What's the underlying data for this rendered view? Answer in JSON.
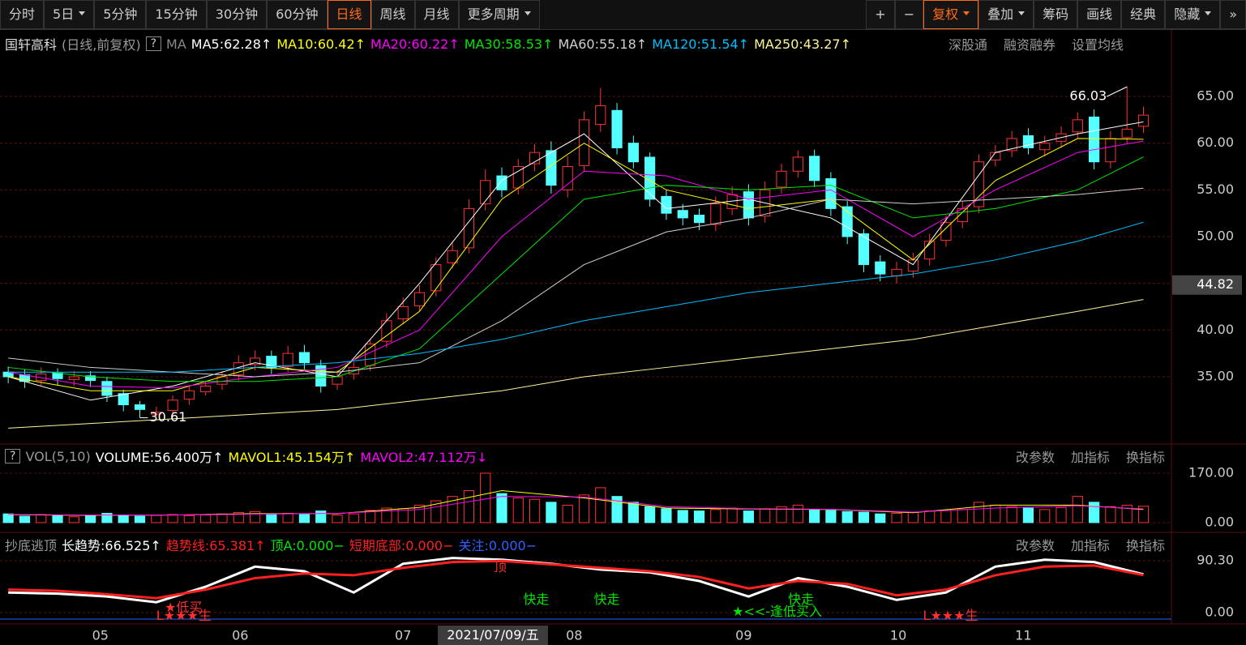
{
  "toolbar": {
    "left": [
      {
        "text": "分时"
      },
      {
        "text": "5日",
        "dropdown": true
      },
      {
        "text": "5分钟"
      },
      {
        "text": "15分钟"
      },
      {
        "text": "30分钟"
      },
      {
        "text": "60分钟"
      },
      {
        "text": "日线",
        "active": true
      },
      {
        "text": "周线"
      },
      {
        "text": "月线"
      },
      {
        "text": "更多周期",
        "dropdown": true
      }
    ],
    "right": [
      {
        "text": "+"
      },
      {
        "text": "−"
      },
      {
        "text": "复权",
        "dropdown": true,
        "active": true
      },
      {
        "text": "叠加",
        "dropdown": true
      },
      {
        "text": "筹码"
      },
      {
        "text": "画线"
      },
      {
        "text": "经典"
      },
      {
        "text": "隐藏",
        "dropdown": true
      },
      {
        "text": "»"
      }
    ]
  },
  "header": {
    "stock": "国轩高科",
    "mode": "(日线,前复权)",
    "help": "?",
    "ma_label": "MA",
    "links": [
      "深股通",
      "融资融券",
      "设置均线"
    ]
  },
  "panel_buttons": [
    "改参数",
    "加指标",
    "换指标"
  ],
  "crosshair_label": "2021/07/09/五",
  "chart_data": [
    {
      "type": "candlestick",
      "open": [
        35.5,
        35.2,
        34.6,
        35.4,
        34.7,
        35.1,
        34.5,
        33.2,
        32.0,
        31.0,
        31.4,
        32.6,
        33.4,
        34.2,
        35.2,
        36.3,
        37.2,
        36.1,
        37.6,
        36.2,
        34.2,
        35.3,
        36.2,
        38.8,
        41.2,
        42.6,
        44.2,
        47.2,
        48.8,
        53.5,
        56.5,
        55.2,
        57.8,
        59.2,
        55.0,
        57.6,
        62.0,
        63.5,
        60.0,
        58.5,
        54.3,
        52.8,
        52.3,
        51.3,
        53.0,
        54.8,
        52.2,
        55.3,
        57.0,
        58.6,
        56.2,
        53.2,
        50.3,
        47.3,
        45.8,
        46.3,
        47.6,
        49.6,
        51.6,
        53.2,
        58.2,
        59.2,
        60.8,
        59.3,
        60.2,
        61.2,
        62.8,
        58.0,
        60.6,
        61.8
      ],
      "high": [
        36.1,
        35.8,
        36.0,
        35.9,
        35.6,
        35.6,
        35.0,
        33.6,
        32.4,
        31.8,
        33.0,
        34.0,
        34.6,
        35.6,
        37.3,
        37.8,
        37.8,
        38.3,
        38.4,
        36.8,
        35.7,
        36.6,
        39.0,
        41.8,
        43.5,
        44.8,
        47.8,
        49.5,
        54.0,
        57.2,
        57.4,
        58.3,
        59.9,
        60.2,
        58.6,
        63.4,
        65.9,
        64.3,
        60.8,
        59.0,
        55.0,
        53.5,
        53.0,
        54.3,
        55.4,
        55.6,
        55.9,
        57.8,
        59.2,
        59.3,
        56.9,
        53.8,
        50.8,
        48.0,
        47.3,
        48.3,
        50.3,
        52.3,
        53.8,
        58.8,
        59.8,
        61.3,
        61.6,
        60.8,
        61.8,
        63.3,
        63.6,
        61.3,
        66.03,
        63.9
      ],
      "low": [
        34.3,
        33.8,
        34.0,
        34.1,
        34.0,
        33.9,
        32.3,
        31.3,
        30.61,
        30.7,
        30.8,
        32.0,
        33.0,
        33.6,
        34.6,
        35.7,
        35.3,
        35.5,
        35.8,
        33.3,
        33.6,
        34.7,
        35.6,
        38.1,
        40.6,
        42.0,
        43.6,
        46.6,
        48.2,
        52.8,
        54.2,
        54.5,
        57.0,
        54.6,
        54.2,
        56.9,
        61.2,
        58.8,
        57.3,
        53.2,
        51.8,
        51.2,
        50.7,
        50.6,
        52.3,
        51.2,
        51.5,
        54.6,
        56.3,
        55.3,
        52.2,
        49.2,
        46.2,
        45.2,
        45.0,
        45.6,
        46.9,
        48.9,
        50.9,
        52.5,
        57.5,
        58.5,
        58.8,
        58.6,
        59.5,
        60.5,
        57.2,
        57.3,
        59.9,
        61.1
      ],
      "close": [
        35.0,
        34.5,
        35.3,
        34.8,
        35.0,
        34.6,
        33.0,
        32.0,
        31.5,
        31.2,
        32.5,
        33.5,
        34.0,
        35.0,
        36.5,
        37.0,
        36.0,
        37.5,
        36.5,
        34.0,
        35.0,
        36.0,
        38.5,
        41.0,
        42.5,
        44.0,
        47.0,
        48.5,
        53.0,
        56.0,
        55.0,
        57.5,
        59.0,
        55.5,
        57.5,
        62.5,
        64.0,
        59.5,
        58.0,
        54.0,
        52.5,
        52.0,
        51.5,
        53.5,
        54.5,
        52.0,
        55.0,
        57.0,
        58.5,
        56.0,
        53.0,
        50.0,
        47.0,
        46.0,
        46.5,
        47.5,
        49.5,
        51.5,
        53.0,
        58.0,
        59.0,
        60.5,
        59.5,
        60.0,
        61.0,
        62.5,
        58.0,
        60.5,
        61.5,
        63.0
      ],
      "up_color": "#ff3232",
      "down_color": "#54ffff",
      "ma_x": [
        0,
        5,
        10,
        15,
        20,
        25,
        30,
        35,
        40,
        45,
        50,
        55,
        60,
        65,
        69
      ],
      "series": [
        {
          "name": "MA5:62.28↑",
          "color": "#ffffff",
          "values": [
            35,
            32.5,
            34,
            36.5,
            35,
            45,
            56,
            61,
            53,
            54,
            52,
            47,
            59,
            61,
            62.28
          ]
        },
        {
          "name": "MA10:60.42↑",
          "color": "#ffff00",
          "values": [
            35,
            33.5,
            33.5,
            36,
            35.5,
            42,
            54,
            60,
            55,
            53,
            54,
            47.5,
            56,
            60.5,
            60.42
          ]
        },
        {
          "name": "MA20:60.22↑",
          "color": "#ff00ff",
          "values": [
            35.5,
            34,
            33.8,
            35,
            36,
            40,
            50,
            57,
            56.5,
            54,
            55,
            50,
            55,
            59,
            60.22
          ]
        },
        {
          "name": "MA30:58.53↑",
          "color": "#00e600",
          "values": [
            36,
            35,
            34.5,
            34.5,
            35,
            38,
            46,
            54,
            55.5,
            55,
            55.5,
            52,
            53,
            55,
            58.53
          ]
        },
        {
          "name": "MA60:55.18↑",
          "color": "#d0d0d0",
          "values": [
            37,
            36,
            35.5,
            35,
            35.5,
            36.5,
            41,
            47,
            50.5,
            52,
            54,
            53.5,
            54,
            54.5,
            55.18
          ]
        },
        {
          "name": "MA120:51.54↑",
          "color": "#00bfff",
          "values": [
            35.5,
            35.5,
            35.5,
            36,
            36.5,
            37.5,
            39,
            41,
            42.5,
            44,
            45,
            46,
            47.5,
            49.5,
            51.54
          ]
        },
        {
          "name": "MA250:43.27↑",
          "color": "#fff59a",
          "values": [
            29.5,
            30,
            30.5,
            31,
            31.5,
            32.5,
            33.5,
            35,
            36,
            37,
            38,
            39,
            40.5,
            42,
            43.27
          ]
        }
      ],
      "extremes": [
        {
          "x": 68,
          "value": 66.03
        },
        {
          "x": 8,
          "value": 30.61
        }
      ],
      "last_price": 44.82,
      "xlim": [
        -0.5,
        70.7
      ],
      "ylim": [
        28.06,
        69.25
      ],
      "yticks": [
        {
          "value": 35,
          "label": "35.00"
        },
        {
          "value": 40,
          "label": "40.00"
        },
        {
          "value": 45,
          "label": "45.00"
        },
        {
          "value": 50,
          "label": "50.00"
        },
        {
          "value": 55,
          "label": "55.00"
        },
        {
          "value": 60,
          "label": "60.00"
        },
        {
          "value": 65,
          "label": "65.00"
        }
      ],
      "xticks": [
        {
          "value": 5.6,
          "label": "05"
        },
        {
          "value": 14.1,
          "label": "06"
        },
        {
          "value": 24,
          "label": "07"
        },
        {
          "value": 34.4,
          "label": "08"
        },
        {
          "value": 44.7,
          "label": "09"
        },
        {
          "value": 54.1,
          "label": "10"
        },
        {
          "value": 61.7,
          "label": "11"
        }
      ]
    },
    {
      "type": "bar",
      "title": "VOL(5,10)",
      "subtitle": "VOLUME:56.400万↑",
      "values": [
        30,
        22,
        28,
        25,
        20,
        24,
        32,
        26,
        22,
        25,
        28,
        24,
        26,
        30,
        35,
        38,
        30,
        32,
        28,
        40,
        26,
        30,
        42,
        50,
        48,
        60,
        75,
        90,
        110,
        170,
        100,
        85,
        80,
        70,
        60,
        95,
        120,
        90,
        70,
        55,
        48,
        42,
        40,
        45,
        50,
        40,
        48,
        55,
        60,
        45,
        42,
        38,
        36,
        30,
        32,
        35,
        40,
        42,
        45,
        70,
        60,
        55,
        50,
        45,
        52,
        90,
        70,
        55,
        60,
        56.4
      ],
      "ma_x": [
        0,
        5,
        10,
        15,
        20,
        25,
        30,
        35,
        40,
        45,
        50,
        55,
        60,
        65,
        69
      ],
      "series": [
        {
          "name": "MAVOL1:45.154万↑",
          "color": "#ffff00",
          "values": [
            27,
            25,
            26,
            31,
            31,
            52,
            110,
            85,
            50,
            47,
            45,
            34,
            60,
            60,
            45.154
          ]
        },
        {
          "name": "MAVOL2:47.112万↓",
          "color": "#ff00ff",
          "values": [
            28,
            26,
            26,
            29,
            32,
            45,
            90,
            88,
            55,
            48,
            46,
            36,
            50,
            58,
            47.112
          ]
        }
      ],
      "xlim": [
        -0.5,
        70.7
      ],
      "ylim": [
        -28,
        195
      ],
      "yticks": [
        {
          "value": 170,
          "label": "170.00"
        },
        {
          "value": 0,
          "label": "0.00"
        }
      ]
    },
    {
      "type": "line",
      "title": "抄底逃顶",
      "x": [
        0,
        3,
        6,
        9,
        12,
        15,
        18,
        21,
        24,
        27,
        30,
        33,
        36,
        39,
        42,
        45,
        48,
        51,
        54,
        57,
        60,
        63,
        66,
        69
      ],
      "series": [
        {
          "name": "长趋势:66.525↑",
          "color": "#ffffff",
          "values": [
            35,
            33,
            28,
            18,
            45,
            80,
            72,
            35,
            85,
            95,
            92,
            85,
            75,
            70,
            55,
            28,
            60,
            45,
            22,
            35,
            80,
            92,
            88,
            66.525
          ]
        },
        {
          "name": "趋势线:65.381↑",
          "color": "#ff2020",
          "values": [
            40,
            38,
            32,
            25,
            40,
            60,
            68,
            65,
            78,
            88,
            90,
            84,
            78,
            72,
            62,
            42,
            55,
            50,
            30,
            40,
            65,
            80,
            82,
            65.381
          ]
        }
      ],
      "legend_only": [
        {
          "name": "顶A:0.000−",
          "color": "#00e600"
        },
        {
          "name": "短期底部:0.000−",
          "color": "#ff2020"
        },
        {
          "name": "关注:0.000−",
          "color": "#3060ff"
        }
      ],
      "annotations": [
        {
          "text": "★低买",
          "x": 9.5,
          "y": 8,
          "color": "#ff3030"
        },
        {
          "text": "L★★★生",
          "x": 9,
          "y": -6,
          "color": "#ff3030"
        },
        {
          "text": "顶",
          "x": 29.5,
          "y": 78,
          "color": "#ff3030"
        },
        {
          "text": "快走",
          "x": 31.3,
          "y": 22,
          "color": "#00e600"
        },
        {
          "text": "快走",
          "x": 35.6,
          "y": 22,
          "color": "#00e600"
        },
        {
          "text": "快走",
          "x": 47.4,
          "y": 22,
          "color": "#00e600"
        },
        {
          "text": "★<<-逢低买入",
          "x": 44,
          "y": 1,
          "color": "#00e600"
        },
        {
          "text": "L★★★生",
          "x": 55.6,
          "y": -6,
          "color": "#ff3030"
        }
      ],
      "xlim": [
        -0.5,
        70.7
      ],
      "ylim": [
        -12.7,
        103
      ],
      "yticks": [
        {
          "value": 90.3,
          "label": "90.30"
        },
        {
          "value": 0,
          "label": "0.00"
        }
      ]
    }
  ]
}
